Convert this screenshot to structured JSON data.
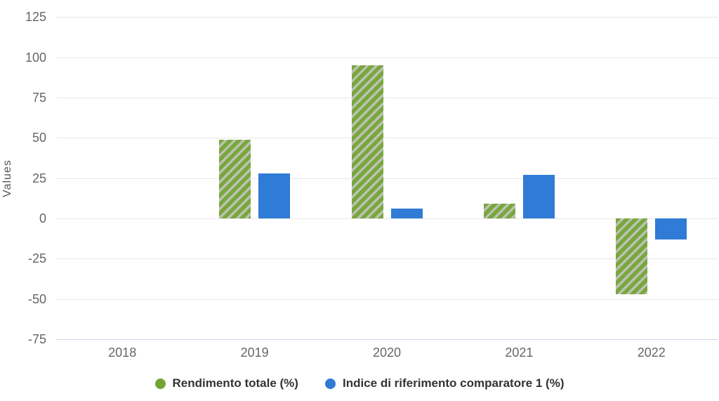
{
  "chart_data": {
    "type": "bar",
    "title": "",
    "ylabel": "Values",
    "xlabel": "",
    "categories": [
      "2018",
      "2019",
      "2020",
      "2021",
      "2022"
    ],
    "series": [
      {
        "key": "rendimento-totale",
        "name": "Rendimento totale (%)",
        "color": "#78a73c",
        "pattern": "diagonal-stripes",
        "pattern_bg": "#bcc2b2",
        "legend_color": "#73a436",
        "values": [
          null,
          49,
          95,
          9,
          -47
        ]
      },
      {
        "key": "indice-riferimento-comparatore-1",
        "name": "Indice di riferimento comparatore 1 (%)",
        "color": "#2f7bd5",
        "pattern": "solid",
        "legend_color": "#2f7bd5",
        "values": [
          null,
          28,
          6,
          27,
          -13
        ]
      }
    ],
    "y_ticks": [
      125,
      100,
      75,
      50,
      25,
      0,
      -25,
      -50,
      -75
    ],
    "ylim": [
      -75,
      131
    ],
    "grid": true,
    "legend_position": "bottom",
    "colors": {
      "grid": "#e7e7e7",
      "axis_line": "#ccd6eb",
      "tick_label": "#666666",
      "axis_title": "#555555",
      "legend_text": "#333333",
      "background": "#ffffff"
    }
  }
}
